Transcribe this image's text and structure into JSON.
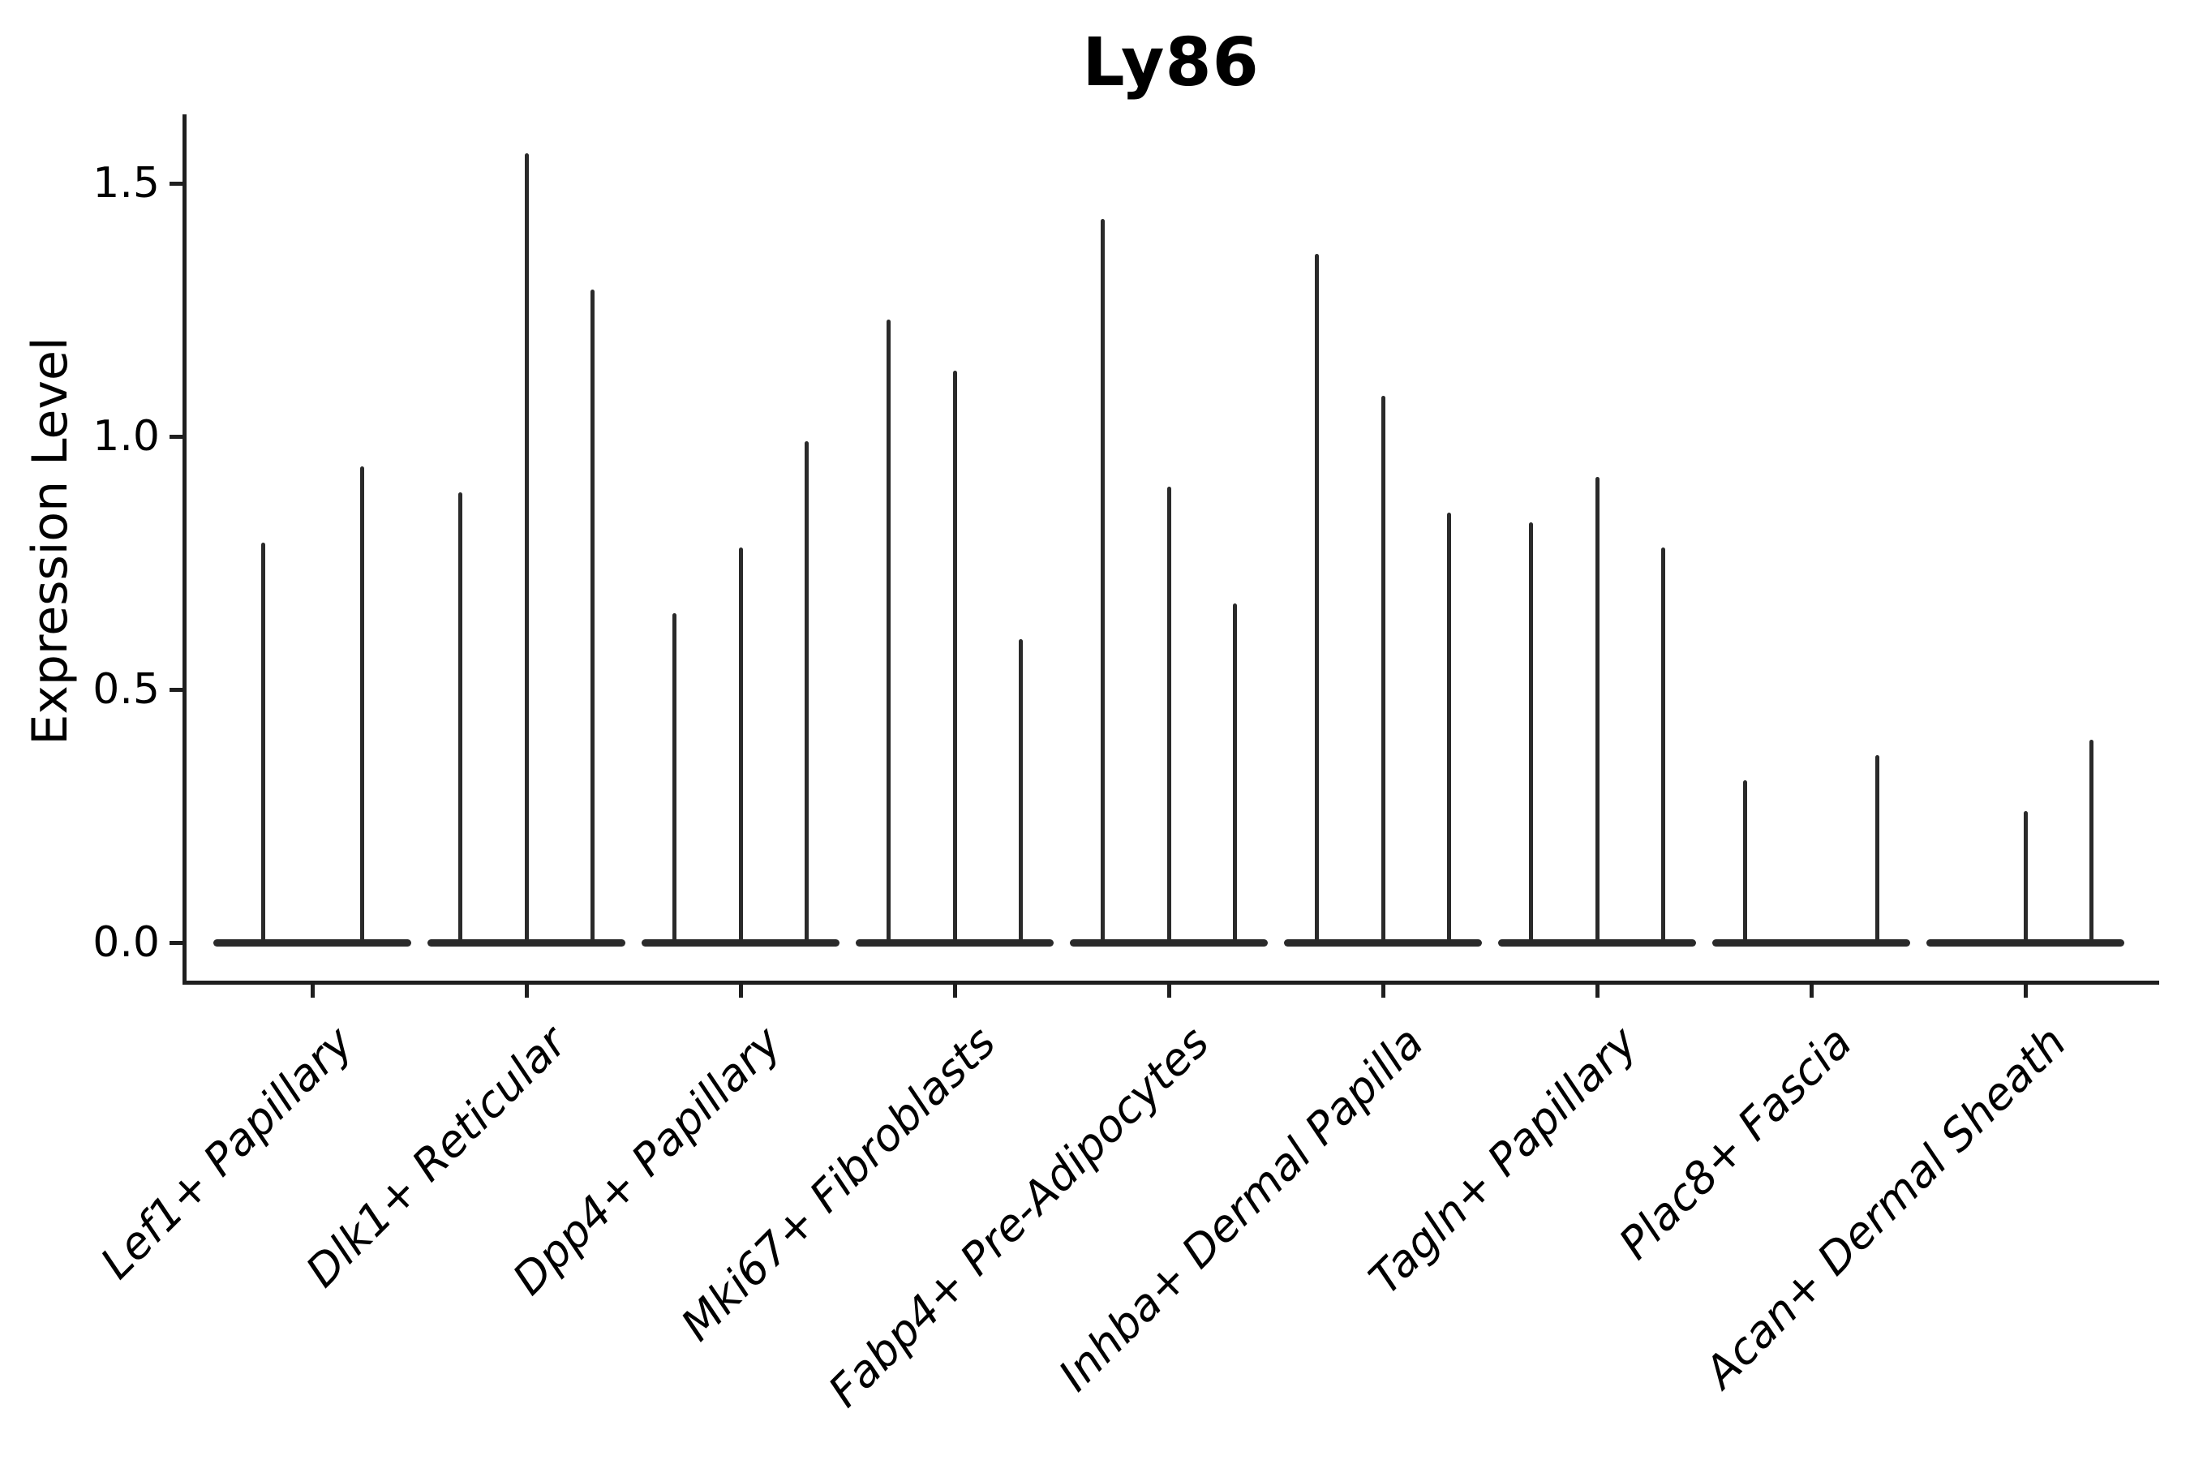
{
  "title": "Ly86",
  "y_axis": {
    "label": "Expression Level",
    "tick_labels": [
      "0.0",
      "0.5",
      "1.0",
      "1.5"
    ],
    "tick_values": [
      0.0,
      0.5,
      1.0,
      1.5
    ]
  },
  "colors": {
    "ink": "#1f1f1f",
    "violin": "#2a2a2a",
    "text": "#000000",
    "background": "#ffffff"
  },
  "chart_data": {
    "type": "violin",
    "title": "Ly86",
    "xlabel": "",
    "ylabel": "Expression Level",
    "ylim": [
      -0.08,
      1.66
    ],
    "grid": false,
    "legend_position": "none",
    "ytick_values": [
      0.0,
      0.5,
      1.0,
      1.5
    ],
    "categories": [
      "Lef1+ Papillary",
      "Dlk1+ Reticular",
      "Dpp4+ Papillary",
      "Mki67+ Fibroblasts",
      "Fabp4+ Pre-Adipocytes",
      "Inhba+ Dermal Papilla",
      "Tagln+ Papillary",
      "Plac8+ Fascia",
      "Acan+ Dermal Sheath"
    ],
    "series": [
      {
        "category": "Lef1+ Papillary",
        "violin_max_values": [
          0.79,
          0.94
        ]
      },
      {
        "category": "Dlk1+ Reticular",
        "violin_max_values": [
          0.89,
          1.56,
          1.29
        ]
      },
      {
        "category": "Dpp4+ Papillary",
        "violin_max_values": [
          0.65,
          0.78,
          0.99
        ]
      },
      {
        "category": "Mki67+ Fibroblasts",
        "violin_max_values": [
          1.23,
          1.13,
          0.6
        ]
      },
      {
        "category": "Fabp4+ Pre-Adipocytes",
        "violin_max_values": [
          1.43,
          0.9,
          0.67
        ]
      },
      {
        "category": "Inhba+ Dermal Papilla",
        "violin_max_values": [
          1.36,
          1.08,
          0.85
        ]
      },
      {
        "category": "Tagln+ Papillary",
        "violin_max_values": [
          0.83,
          0.92,
          0.78
        ]
      },
      {
        "category": "Plac8+ Fascia",
        "violin_max_values": [
          0.32,
          0,
          0.37
        ]
      },
      {
        "category": "Acan+ Dermal Sheath",
        "violin_max_values": [
          0,
          0.26,
          0.4
        ]
      }
    ]
  }
}
